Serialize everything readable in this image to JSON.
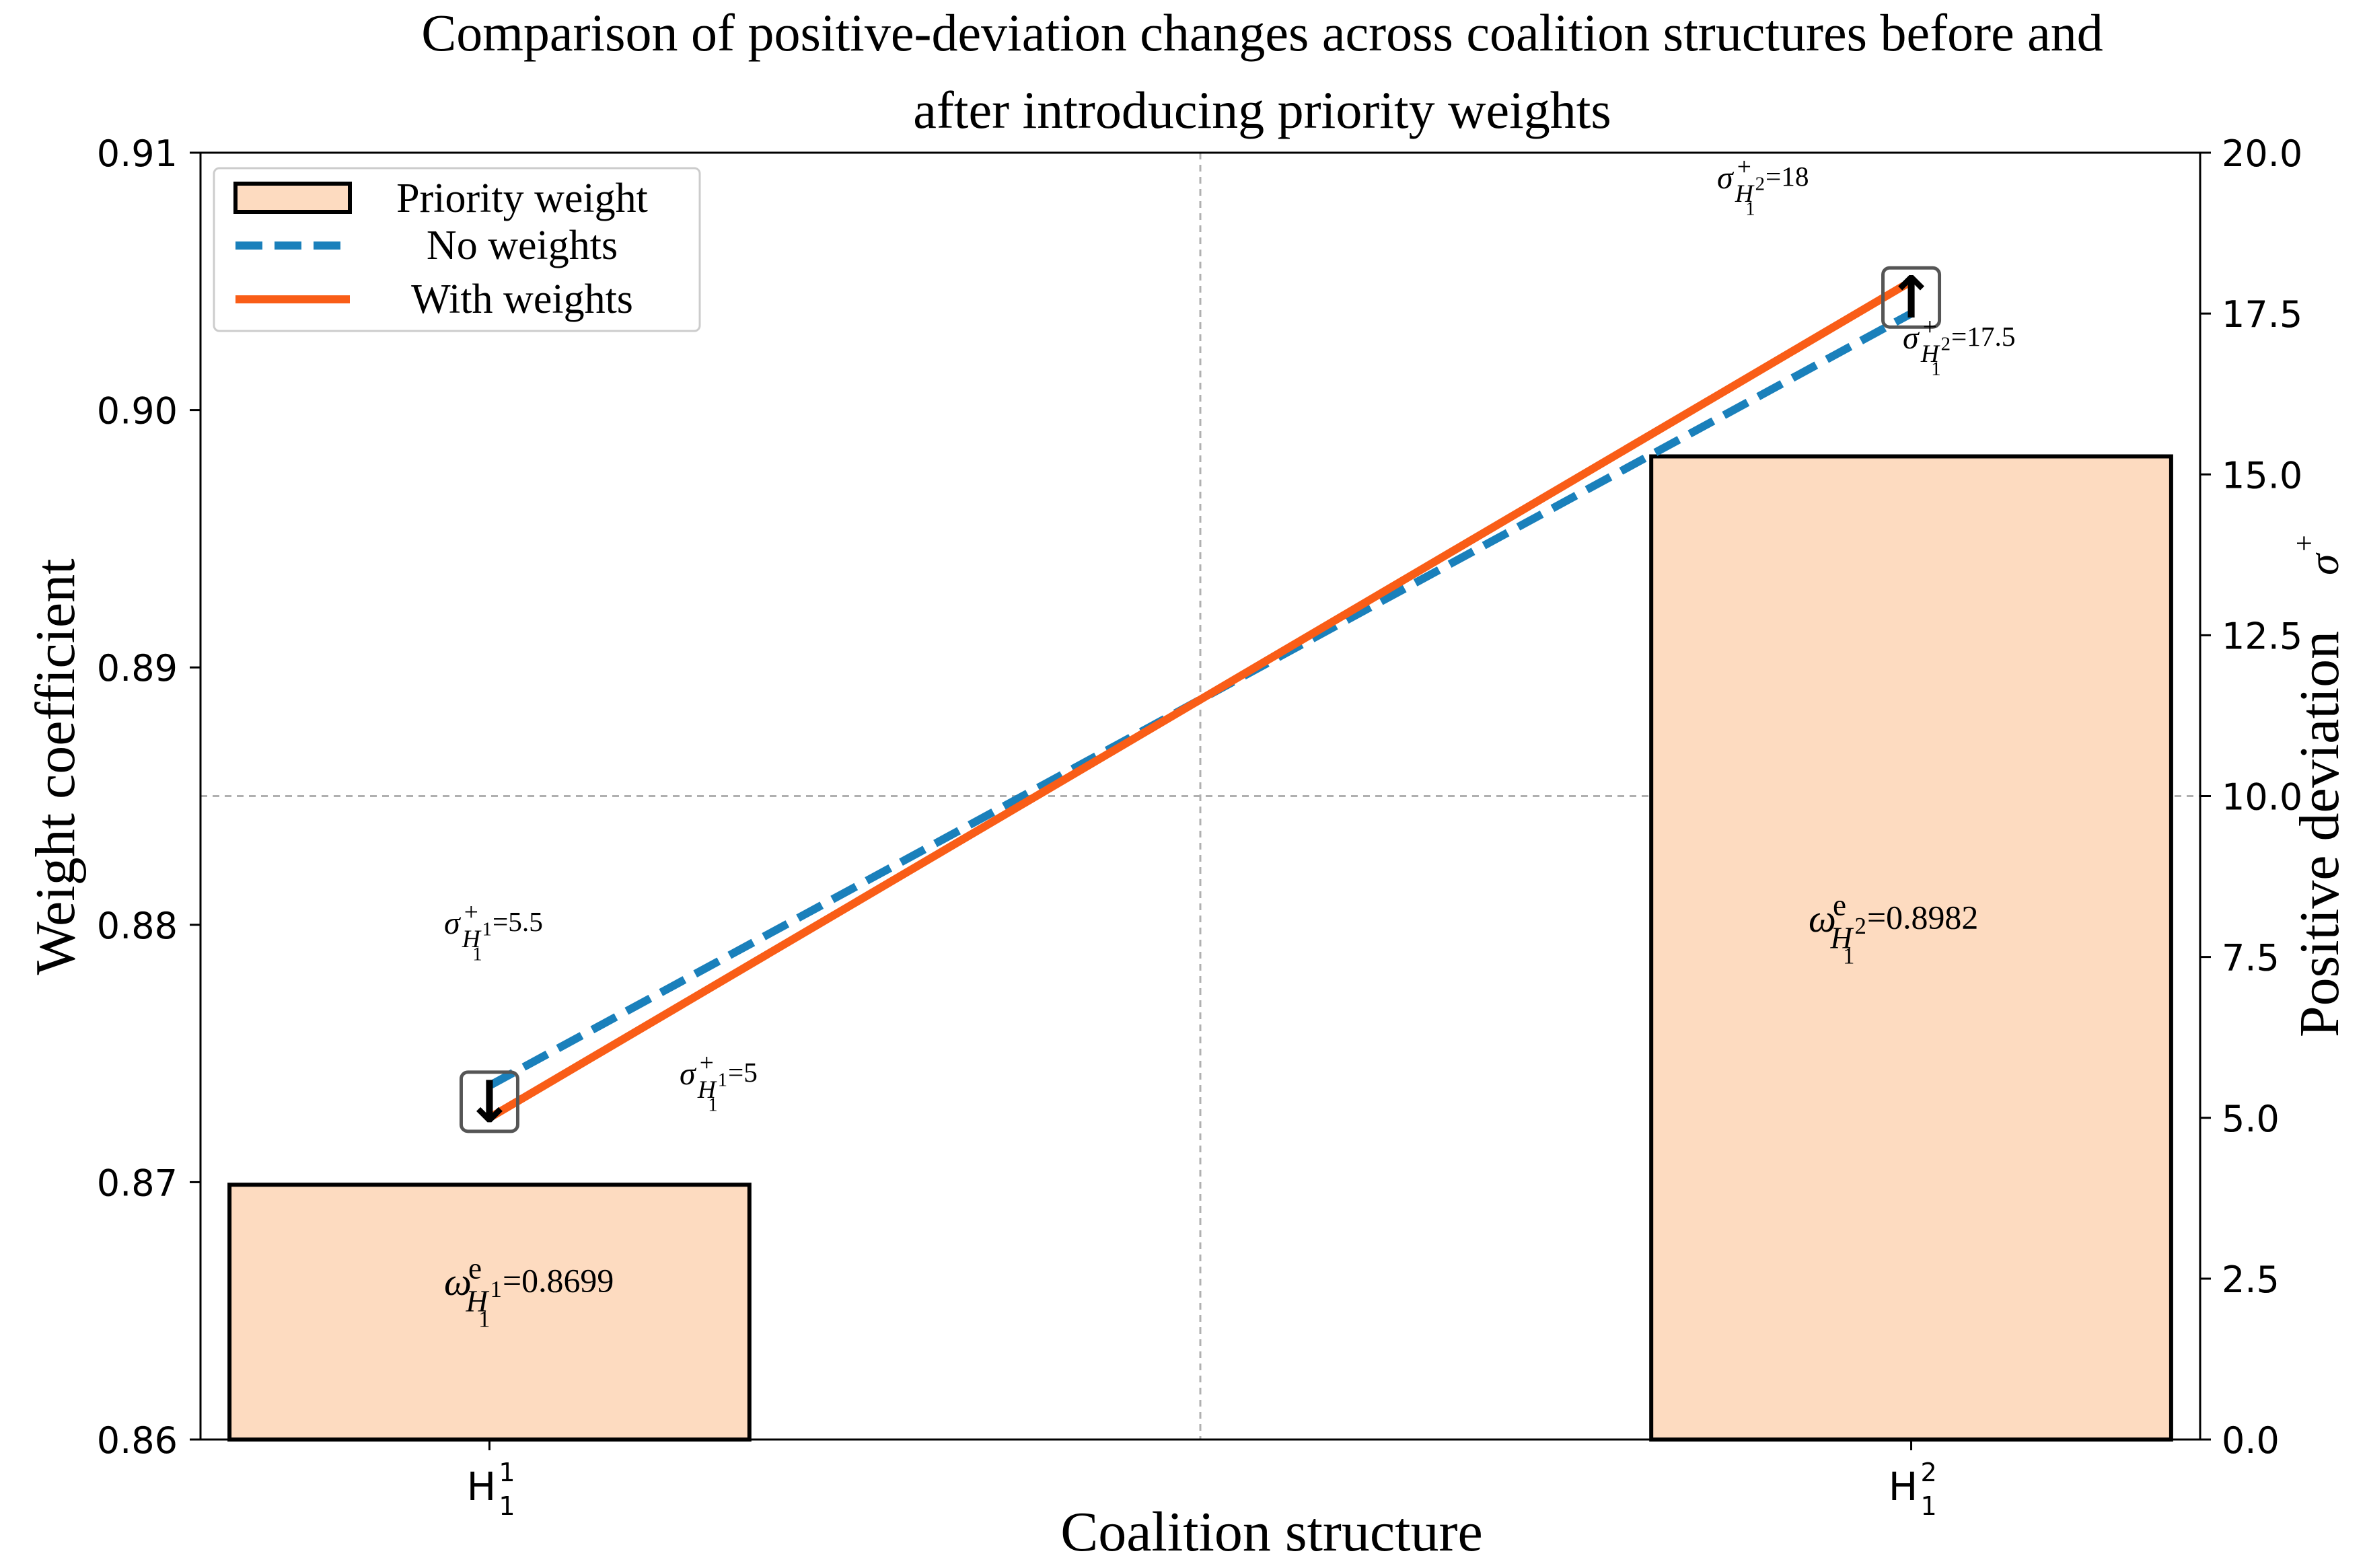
{
  "chart_data": {
    "type": "bar",
    "title_lines": [
      "Comparison of positive-deviation changes across coalition structures before and",
      "after introducing priority weights"
    ],
    "xlabel": "Coalition structure",
    "ylabel_left": "Weight coefficient",
    "ylabel_right": "Positive deviation",
    "ylabel_right_symbol": "σ",
    "ylabel_right_symbol_sup": "+",
    "categories": [
      {
        "base": "H",
        "sub": "1",
        "sup": "1"
      },
      {
        "base": "H",
        "sub": "1",
        "sup": "2"
      }
    ],
    "ylim_left": [
      0.86,
      0.91
    ],
    "yticks_left": [
      "0.86",
      "0.87",
      "0.88",
      "0.89",
      "0.90",
      "0.91"
    ],
    "ylim_right": [
      0.0,
      20.0
    ],
    "yticks_right": [
      "0.0",
      "2.5",
      "5.0",
      "7.5",
      "10.0",
      "12.5",
      "15.0",
      "17.5",
      "20.0"
    ],
    "series": [
      {
        "name": "Priority weight",
        "kind": "bar",
        "axis": "left",
        "values": [
          0.8699,
          0.8982
        ],
        "fill": "#fddbc0",
        "stroke": "#000000"
      },
      {
        "name": "No weights",
        "kind": "line",
        "axis": "right",
        "style": "dashed",
        "values": [
          5.5,
          17.5
        ],
        "color": "#1a80bb"
      },
      {
        "name": "With weights",
        "kind": "line",
        "axis": "right",
        "style": "solid",
        "values": [
          5.0,
          18.0
        ],
        "color": "#f95d17"
      }
    ],
    "bar_labels": [
      {
        "symbol": "ω",
        "sup": "e",
        "sub_base": "H",
        "sub_sup": "1",
        "sub_sub": "1",
        "text": "=0.8699"
      },
      {
        "symbol": "ω",
        "sup": "e",
        "sub_base": "H",
        "sub_sup": "2",
        "sub_sub": "1",
        "text": "=0.8982"
      }
    ],
    "annotations": [
      {
        "symbol": "σ",
        "sup": "+",
        "sub_base": "H",
        "sub_sup": "1",
        "sub_sub": "1",
        "text": "=5.5"
      },
      {
        "symbol": "σ",
        "sup": "+",
        "sub_base": "H",
        "sub_sup": "1",
        "sub_sub": "1",
        "text": "=5"
      },
      {
        "symbol": "σ",
        "sup": "+",
        "sub_base": "H",
        "sub_sup": "2",
        "sub_sub": "1",
        "text": "=18"
      },
      {
        "symbol": "σ",
        "sup": "+",
        "sub_base": "H",
        "sub_sup": "2",
        "sub_sub": "1",
        "text": "=17.5"
      }
    ],
    "arrows": [
      {
        "at_category": 0,
        "direction": "down",
        "glyph": "↓"
      },
      {
        "at_category": 1,
        "direction": "up",
        "glyph": "↑"
      }
    ],
    "reference_lines": [
      {
        "axis": "right",
        "value": 10.0,
        "orientation": "horizontal"
      },
      {
        "axis": "x",
        "value": 0.5,
        "orientation": "vertical"
      }
    ],
    "legend_position": "top-left",
    "grid": false
  }
}
